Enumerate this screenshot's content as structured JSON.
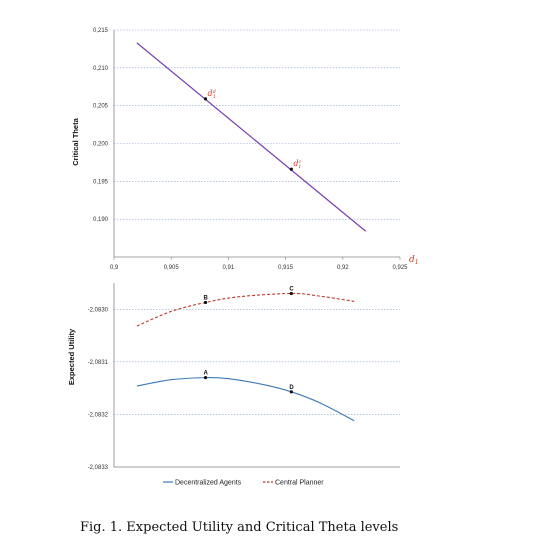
{
  "chart_data": [
    {
      "type": "line",
      "ylabel": "Critical Theta",
      "xlabel_symbol": "d",
      "xlabel_subscript": "1",
      "xlim": [
        0.9,
        0.925
      ],
      "ylim": [
        0.185,
        0.215
      ],
      "x_ticks": [
        "0,9",
        "0,905",
        "0,91",
        "0,915",
        "0,92",
        "0,925"
      ],
      "y_ticks": [
        "0,215",
        "0,210",
        "0,205",
        "0,200",
        "0,195",
        "0,190"
      ],
      "grid": "horizontal-dotted",
      "series": [
        {
          "x": [
            0.902,
            0.922
          ],
          "y": [
            0.2133,
            0.1884
          ],
          "color": "#7a3fb0"
        }
      ],
      "points": [
        {
          "label": "d",
          "sup": "d",
          "sub": "1",
          "x": 0.908,
          "y": 0.2059
        },
        {
          "label": "d",
          "sup": "c",
          "sub": "1",
          "x": 0.9155,
          "y": 0.1966
        }
      ]
    },
    {
      "type": "line",
      "ylabel": "Expected Utility",
      "ylim": [
        -2.0833,
        -2.08295
      ],
      "y_ticks": [
        "-2,0830",
        "-2,0831",
        "-2,0832",
        "-2,0833"
      ],
      "grid": "horizontal-dotted",
      "series": [
        {
          "name": "Decentralized Agents",
          "color": "#3d7ab8",
          "dash": "solid",
          "x": [
            0.902,
            0.905,
            0.908,
            0.91,
            0.913,
            0.9155,
            0.918,
            0.921
          ],
          "y": [
            -2.083146,
            -2.083134,
            -2.08313,
            -2.083132,
            -2.083143,
            -2.083157,
            -2.083178,
            -2.083212
          ]
        },
        {
          "name": "Central Planner",
          "color": "#c0392b",
          "dash": "dashed",
          "x": [
            0.902,
            0.905,
            0.908,
            0.911,
            0.9155,
            0.918,
            0.921
          ],
          "y": [
            -2.083032,
            -2.083004,
            -2.082987,
            -2.082976,
            -2.08297,
            -2.082975,
            -2.082985
          ]
        }
      ],
      "points": [
        {
          "label": "A",
          "x": 0.908,
          "y": -2.08313
        },
        {
          "label": "B",
          "x": 0.908,
          "y": -2.082987
        },
        {
          "label": "C",
          "x": 0.9155,
          "y": -2.08297
        },
        {
          "label": "D",
          "x": 0.9155,
          "y": -2.083157
        }
      ]
    }
  ],
  "caption": "Fig. 1. Expected Utility and Critical Theta levels"
}
